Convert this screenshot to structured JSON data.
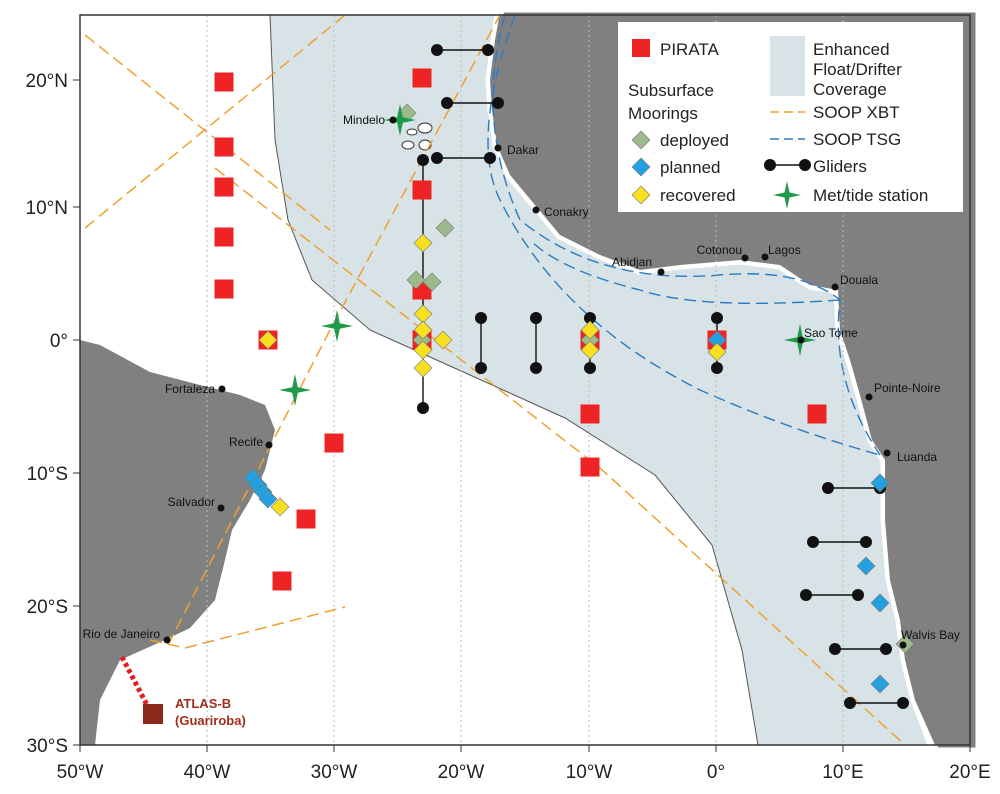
{
  "axes": {
    "x_labels": [
      "50°W",
      "40°W",
      "30°W",
      "20°W",
      "10°W",
      "0°",
      "10°E",
      "20°E"
    ],
    "y_labels": [
      "20°N",
      "10°N",
      "0°",
      "10°S",
      "20°S",
      "30°S"
    ]
  },
  "legend": {
    "pirata": "PIRATA",
    "subsurface": [
      "Subsurface",
      "Moorings"
    ],
    "deployed": "deployed",
    "planned": "planned",
    "recovered": "recovered",
    "enhanced": [
      "Enhanced",
      "Float/Drifter",
      "Coverage"
    ],
    "soop_xbt": "SOOP XBT",
    "soop_tsg": "SOOP TSG",
    "gliders": "Gliders",
    "met": "Met/tide station"
  },
  "places": [
    "Mindelo",
    "Dakar",
    "Conakry",
    "Abidjan",
    "Cotonou",
    "Lagos",
    "Douala",
    "Sao Tome",
    "Pointe-Noire",
    "Luanda",
    "Walvis Bay",
    "Fortaleza",
    "Recife",
    "Salvador",
    "Rio de Janeiro"
  ],
  "atlas": [
    "ATLAS-B",
    "(Guariroba)"
  ]
}
